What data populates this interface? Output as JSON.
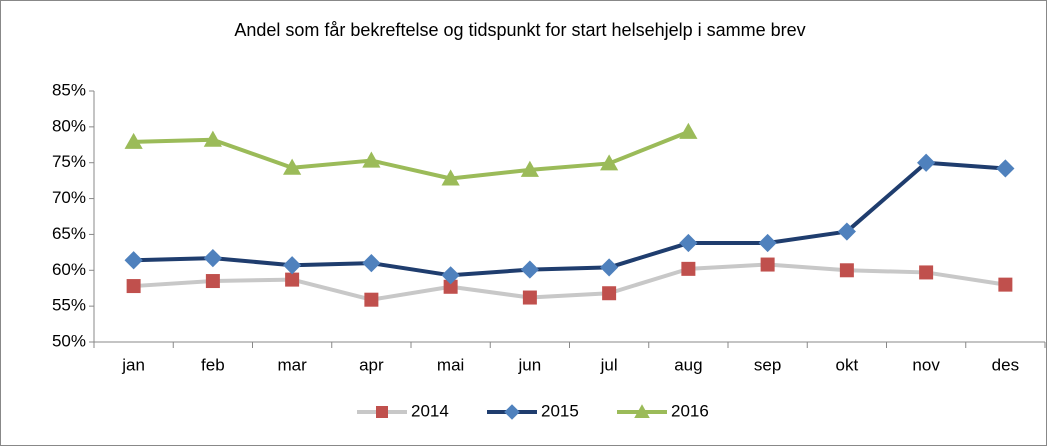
{
  "chart_data": {
    "type": "line",
    "title": "Andel som får bekreftelse og tidspunkt for start helsehjelp i samme brev",
    "categories": [
      "jan",
      "feb",
      "mar",
      "apr",
      "mai",
      "jun",
      "jul",
      "aug",
      "sep",
      "okt",
      "nov",
      "des"
    ],
    "series": [
      {
        "name": "2014",
        "color": "#c8c8c8",
        "marker_color": "#c0504d",
        "marker": "square",
        "values": [
          57.8,
          58.5,
          58.7,
          55.9,
          57.7,
          56.2,
          56.8,
          60.2,
          60.8,
          60.0,
          59.7,
          58.0
        ]
      },
      {
        "name": "2015",
        "color": "#1f3d6e",
        "marker_color": "#4f81bd",
        "marker": "diamond",
        "values": [
          61.4,
          61.7,
          60.7,
          61.0,
          59.3,
          60.1,
          60.4,
          63.8,
          63.8,
          65.4,
          75.0,
          74.2
        ]
      },
      {
        "name": "2016",
        "color": "#9bbb59",
        "marker_color": "#9bbb59",
        "marker": "triangle",
        "values": [
          77.9,
          78.2,
          74.3,
          75.3,
          72.8,
          74.0,
          74.9,
          79.3,
          null,
          null,
          null,
          null
        ]
      }
    ],
    "ylim": [
      50,
      85
    ],
    "yticks": [
      {
        "value": 50,
        "label": "50%"
      },
      {
        "value": 55,
        "label": "55%"
      },
      {
        "value": 60,
        "label": "60%"
      },
      {
        "value": 65,
        "label": "65%"
      },
      {
        "value": 70,
        "label": "70%"
      },
      {
        "value": 75,
        "label": "75%"
      },
      {
        "value": 80,
        "label": "80%"
      },
      {
        "value": 85,
        "label": "85%"
      }
    ],
    "legend": "bottom",
    "grid": false
  }
}
